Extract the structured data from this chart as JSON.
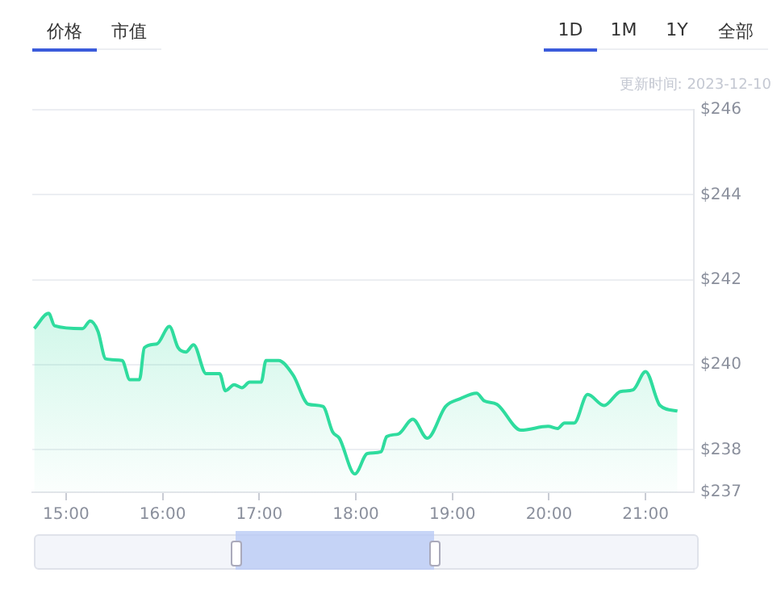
{
  "chart_data": {
    "type": "area",
    "annotations": [
      "价格",
      "市值",
      "1D",
      "1M",
      "1Y",
      "全部",
      "更新时间: 2023-12-10"
    ],
    "x": [
      14.67,
      14.82,
      14.88,
      15.17,
      15.25,
      15.33,
      15.41,
      15.58,
      15.66,
      15.76,
      15.81,
      15.94,
      16.07,
      16.16,
      16.24,
      16.32,
      16.45,
      16.59,
      16.65,
      16.74,
      16.82,
      16.9,
      17.02,
      17.07,
      17.2,
      17.35,
      17.51,
      17.66,
      17.76,
      17.83,
      17.99,
      18.12,
      18.26,
      18.32,
      18.44,
      18.59,
      18.74,
      18.93,
      19.08,
      19.25,
      19.33,
      19.46,
      19.71,
      19.99,
      20.09,
      20.16,
      20.26,
      20.4,
      20.57,
      20.74,
      20.87,
      21.0,
      21.15,
      21.33
    ],
    "series": [
      {
        "color": "#2fdc9e",
        "values": [
          240.85,
          241.21,
          240.92,
          240.85,
          241.03,
          240.79,
          240.14,
          240.1,
          239.65,
          239.65,
          240.4,
          240.49,
          240.9,
          240.4,
          240.3,
          240.47,
          239.79,
          239.79,
          239.39,
          239.53,
          239.46,
          239.59,
          239.59,
          240.1,
          240.1,
          239.76,
          239.07,
          239.02,
          238.42,
          238.27,
          237.43,
          237.91,
          237.95,
          238.31,
          238.37,
          238.72,
          238.27,
          239.02,
          239.2,
          239.33,
          239.15,
          239.07,
          238.46,
          238.55,
          238.5,
          238.63,
          238.63,
          239.3,
          239.04,
          239.37,
          239.41,
          239.84,
          239.04,
          238.91
        ]
      }
    ],
    "xlim": [
      14.65,
      21.5
    ],
    "xticks": [
      {
        "value": 15,
        "label": "15:00"
      },
      {
        "value": 16,
        "label": "16:00"
      },
      {
        "value": 17,
        "label": "17:00"
      },
      {
        "value": 18,
        "label": "18:00"
      },
      {
        "value": 19,
        "label": "19:00"
      },
      {
        "value": 20,
        "label": "20:00"
      },
      {
        "value": 21,
        "label": "21:00"
      }
    ],
    "ylim": [
      237,
      246
    ],
    "yticks": [
      {
        "value": 237,
        "label": "$237"
      },
      {
        "value": 238,
        "label": "$238"
      },
      {
        "value": 240,
        "label": "$240"
      },
      {
        "value": 242,
        "label": "$242"
      },
      {
        "value": 244,
        "label": "$244"
      },
      {
        "value": 246,
        "label": "$246"
      }
    ],
    "grid": "y",
    "legend": false,
    "marker": "none",
    "line_style": "solid"
  }
}
